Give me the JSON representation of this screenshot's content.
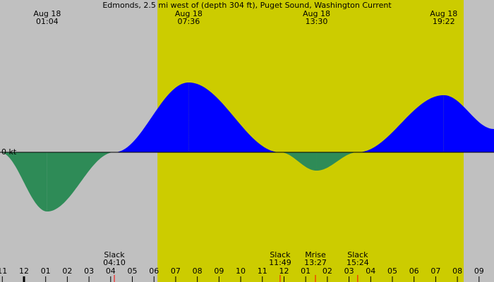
{
  "chart_data": {
    "type": "tide-current",
    "title": "Edmonds, 2.5 mi west of (depth 304 ft), Puget Sound, Washington Current",
    "zero_label": "0 kt",
    "x": [
      -1.1,
      1.07,
      4.17,
      7.6,
      11.82,
      13.5,
      15.4,
      19.37,
      21.69
    ],
    "values": [
      0,
      -0.84,
      0,
      0.99,
      0,
      -0.26,
      0,
      0.81,
      0.33
    ],
    "dates": [
      null,
      "Aug 18",
      null,
      "Aug 18",
      null,
      "Aug 18",
      null,
      "Aug 18",
      null
    ],
    "times": [
      null,
      "01:04",
      "04:10",
      "07:36",
      "11:49",
      "13:30",
      "15:24",
      "19:22",
      null
    ],
    "events": [
      null,
      null,
      "Slack",
      null,
      "Slack",
      null,
      "Slack",
      null,
      null
    ],
    "moon_events": [
      {
        "name": "Mrise",
        "time": "13:27",
        "x": 13.45
      }
    ],
    "flood_color": "#0000ff",
    "ebb_color": "#2e8b57",
    "background": "#c0c0c0",
    "daylight": [
      6.16,
      20.29
    ],
    "daylight_color": "#cccc00",
    "xlim": [
      -1.107,
      21.69
    ],
    "ylim": [
      -1.84,
      1.0
    ],
    "xticks": [
      {
        "value": -1,
        "label": "11"
      },
      {
        "value": 0,
        "label": "12"
      },
      {
        "value": 1,
        "label": "01"
      },
      {
        "value": 2,
        "label": "02"
      },
      {
        "value": 3,
        "label": "03"
      },
      {
        "value": 4,
        "label": "04"
      },
      {
        "value": 5,
        "label": "05"
      },
      {
        "value": 6,
        "label": "06"
      },
      {
        "value": 7,
        "label": "07"
      },
      {
        "value": 8,
        "label": "08"
      },
      {
        "value": 9,
        "label": "09"
      },
      {
        "value": 10,
        "label": "10"
      },
      {
        "value": 11,
        "label": "11"
      },
      {
        "value": 12,
        "label": "12"
      },
      {
        "value": 13,
        "label": "01"
      },
      {
        "value": 14,
        "label": "02"
      },
      {
        "value": 15,
        "label": "03"
      },
      {
        "value": 16,
        "label": "04"
      },
      {
        "value": 17,
        "label": "05"
      },
      {
        "value": 18,
        "label": "06"
      },
      {
        "value": 19,
        "label": "07"
      },
      {
        "value": 20,
        "label": "08"
      },
      {
        "value": 21,
        "label": "09"
      }
    ]
  }
}
